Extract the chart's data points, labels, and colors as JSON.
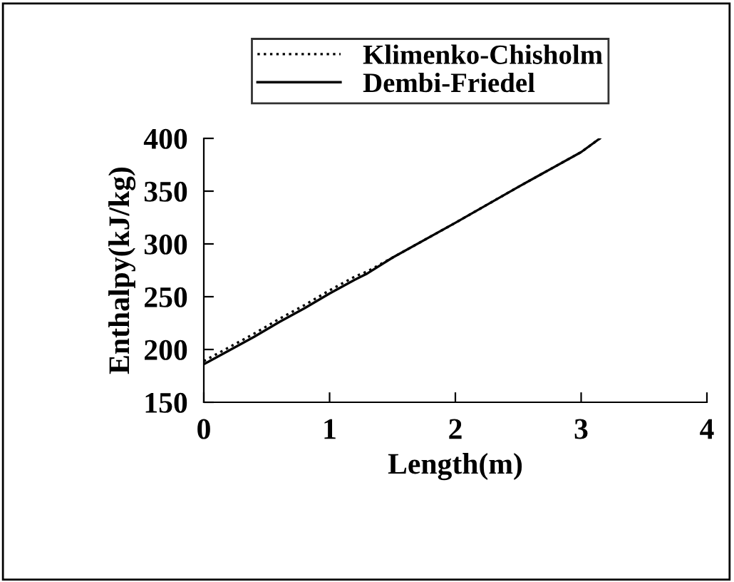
{
  "chart_data": {
    "type": "line",
    "xlabel": "Length(m)",
    "ylabel": "Enthalpy(kJ/kg)",
    "xlim": [
      0,
      4
    ],
    "xticks": [
      0,
      1,
      2,
      3,
      4
    ],
    "ylim": [
      150,
      400
    ],
    "yticks": [
      150,
      200,
      250,
      300,
      350,
      400
    ],
    "grid": false,
    "legend": "top",
    "marker": "none",
    "series": [
      {
        "name": "Klimenko-Chisholm",
        "color": "#000000",
        "line_style": "dotted",
        "x": [
          0,
          0.2,
          0.4,
          0.6,
          0.8,
          1.0,
          1.2,
          1.3,
          1.5,
          2.0,
          2.5,
          3.0,
          3.15
        ],
        "values": [
          189,
          202,
          215,
          229,
          242,
          256,
          269,
          274,
          287,
          320,
          354,
          387,
          400
        ]
      },
      {
        "name": "Dembi-Friedel",
        "color": "#000000",
        "line_style": "solid",
        "x": [
          0,
          0.2,
          0.4,
          0.6,
          0.8,
          1.0,
          1.2,
          1.3,
          1.5,
          2.0,
          2.5,
          3.0,
          3.15
        ],
        "values": [
          186,
          199,
          212,
          226,
          239,
          253,
          266,
          272,
          287,
          320,
          354,
          387,
          400
        ]
      }
    ]
  }
}
